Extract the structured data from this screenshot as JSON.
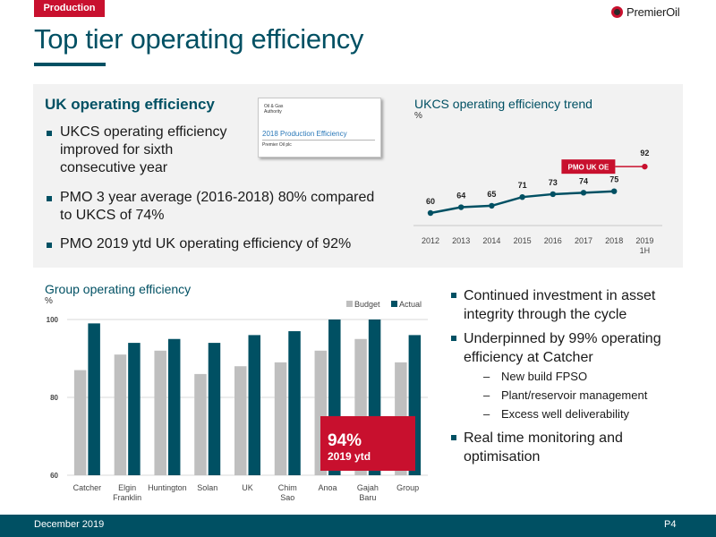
{
  "section_tag": "Production",
  "logo_text": "PremierOil",
  "page_title": "Top tier operating efficiency",
  "uk_block": {
    "heading": "UK operating efficiency",
    "bullets": [
      "UKCS operating efficiency improved for sixth consecutive year",
      "PMO 3 year average (2016-2018) 80% compared to UKCS of 74%",
      "PMO 2019 ytd UK operating efficiency of 92%"
    ]
  },
  "report_thumbnail": {
    "authority": "Oil & Gas Authority",
    "title": "2018 Production Efficiency",
    "subtitle": "Premier Oil plc"
  },
  "right_bullets": {
    "b1": "Continued investment in asset integrity through the cycle",
    "b2": "Underpinned by 99% operating efficiency at Catcher",
    "subs": [
      "New build FPSO",
      "Plant/reservoir management",
      "Excess well deliverability"
    ],
    "b3": "Real time monitoring and optimisation"
  },
  "ytd_box": {
    "value": "94%",
    "label": "2019 ytd"
  },
  "footer": {
    "date": "December 2019",
    "page": "P4"
  },
  "colors": {
    "teal": "#005063",
    "red": "#c8102e",
    "grey_bar": "#bfbfbf",
    "panel": "#f2f2f2"
  },
  "chart_data": [
    {
      "type": "line",
      "title": "UKCS operating efficiency trend",
      "ylabel": "%",
      "x": [
        "2012",
        "2013",
        "2014",
        "2015",
        "2016",
        "2017",
        "2018",
        "2019 1H"
      ],
      "series": [
        {
          "values": [
            60,
            64,
            65,
            71,
            73,
            74,
            75,
            null
          ]
        }
      ],
      "highlight": {
        "x": "2019 1H",
        "value": 92,
        "label": "PMO UK OE"
      },
      "grid": false
    },
    {
      "type": "bar",
      "title": "Group operating efficiency",
      "ylabel": "%",
      "categories": [
        "Catcher",
        "Elgin Franklin",
        "Huntington",
        "Solan",
        "UK",
        "Chim Sao",
        "Anoa",
        "Gajah Baru",
        "Group"
      ],
      "series": [
        {
          "name": "Budget",
          "values": [
            87,
            91,
            92,
            86,
            88,
            89,
            92,
            95,
            89
          ]
        },
        {
          "name": "Actual",
          "values": [
            99,
            94,
            95,
            94,
            96,
            97,
            100,
            100,
            96
          ]
        }
      ],
      "ylim": [
        60,
        100
      ],
      "yticks": [
        60,
        80,
        100
      ],
      "grid": true,
      "legend": "top-right"
    }
  ]
}
